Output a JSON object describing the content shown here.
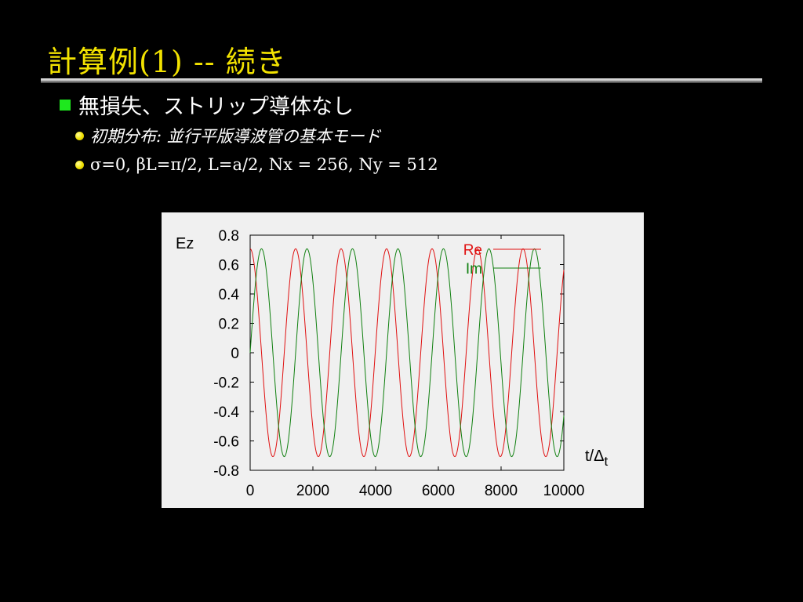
{
  "slide": {
    "title": "計算例(1)  --  続き",
    "bullet_main": "無損失、ストリップ導体なし",
    "sub_bullets": [
      "初期分布:  並行平版導波管の基本モード",
      "σ=0,  βL=π/2,  L=a/2,  Nx = 256,  Ny = 512"
    ]
  },
  "colors": {
    "title": "#f2e200",
    "bullet_square": "#1ee81e",
    "bullet_dot": "#f0e000",
    "series_re": "#e01010",
    "series_im": "#108010"
  },
  "chart_data": {
    "type": "line",
    "ylabel": "Ez",
    "xlabel": "t/Δt",
    "xlim": [
      0,
      10000
    ],
    "ylim": [
      -0.8,
      0.8
    ],
    "x_ticks": [
      "0",
      "2000",
      "4000",
      "6000",
      "8000",
      "10000"
    ],
    "y_ticks": [
      "0.8",
      "0.6",
      "0.4",
      "0.2",
      "0",
      "-0.2",
      "-0.4",
      "-0.6",
      "-0.8"
    ],
    "grid": false,
    "legend_position": "top-right",
    "period": 1450,
    "amplitude": 0.707,
    "series": [
      {
        "name": "Re",
        "function": "amplitude*cos(2*pi*t/period)",
        "color": "#e01010"
      },
      {
        "name": "Im",
        "function": "amplitude*sin(2*pi*t/period)",
        "color": "#108010"
      }
    ]
  }
}
